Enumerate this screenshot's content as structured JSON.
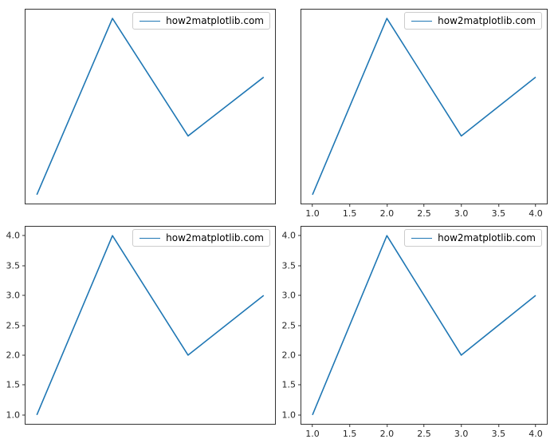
{
  "legend_label": "how2matplotlib.com",
  "colors": {
    "line": "#1f77b4",
    "spine": "#333333",
    "legend_border": "#cccccc",
    "tick_label": "#262626",
    "background": "#ffffff"
  },
  "chart_data": [
    {
      "type": "line",
      "position": "top-left",
      "x": [
        1,
        2,
        3,
        4
      ],
      "y": [
        1,
        4,
        2,
        3
      ],
      "xlim": [
        0.85,
        4.15
      ],
      "ylim": [
        0.85,
        4.15
      ],
      "title": "",
      "xlabel": "",
      "ylabel": "",
      "grid": false,
      "legend": "how2matplotlib.com",
      "legend_position": "upper right",
      "xticks": {
        "values": [],
        "labels": []
      },
      "yticks": {
        "values": [],
        "labels": []
      }
    },
    {
      "type": "line",
      "position": "top-right",
      "x": [
        1,
        2,
        3,
        4
      ],
      "y": [
        1,
        4,
        2,
        3
      ],
      "xlim": [
        0.85,
        4.15
      ],
      "ylim": [
        0.85,
        4.15
      ],
      "title": "",
      "xlabel": "",
      "ylabel": "",
      "grid": false,
      "legend": "how2matplotlib.com",
      "legend_position": "upper right",
      "xticks": {
        "values": [
          1.0,
          1.5,
          2.0,
          2.5,
          3.0,
          3.5,
          4.0
        ],
        "labels": [
          "1.0",
          "1.5",
          "2.0",
          "2.5",
          "3.0",
          "3.5",
          "4.0"
        ]
      },
      "yticks": {
        "values": [],
        "labels": []
      }
    },
    {
      "type": "line",
      "position": "bottom-left",
      "x": [
        1,
        2,
        3,
        4
      ],
      "y": [
        1,
        4,
        2,
        3
      ],
      "xlim": [
        0.85,
        4.15
      ],
      "ylim": [
        0.85,
        4.15
      ],
      "title": "",
      "xlabel": "",
      "ylabel": "",
      "grid": false,
      "legend": "how2matplotlib.com",
      "legend_position": "upper right",
      "xticks": {
        "values": [],
        "labels": []
      },
      "yticks": {
        "values": [
          1.0,
          1.5,
          2.0,
          2.5,
          3.0,
          3.5,
          4.0
        ],
        "labels": [
          "1.0",
          "1.5",
          "2.0",
          "2.5",
          "3.0",
          "3.5",
          "4.0"
        ]
      }
    },
    {
      "type": "line",
      "position": "bottom-right",
      "x": [
        1,
        2,
        3,
        4
      ],
      "y": [
        1,
        4,
        2,
        3
      ],
      "xlim": [
        0.85,
        4.15
      ],
      "ylim": [
        0.85,
        4.15
      ],
      "title": "",
      "xlabel": "",
      "ylabel": "",
      "grid": false,
      "legend": "how2matplotlib.com",
      "legend_position": "upper right",
      "xticks": {
        "values": [
          1.0,
          1.5,
          2.0,
          2.5,
          3.0,
          3.5,
          4.0
        ],
        "labels": [
          "1.0",
          "1.5",
          "2.0",
          "2.5",
          "3.0",
          "3.5",
          "4.0"
        ]
      },
      "yticks": {
        "values": [
          1.0,
          1.5,
          2.0,
          2.5,
          3.0,
          3.5,
          4.0
        ],
        "labels": [
          "1.0",
          "1.5",
          "2.0",
          "2.5",
          "3.0",
          "3.5",
          "4.0"
        ]
      }
    }
  ]
}
